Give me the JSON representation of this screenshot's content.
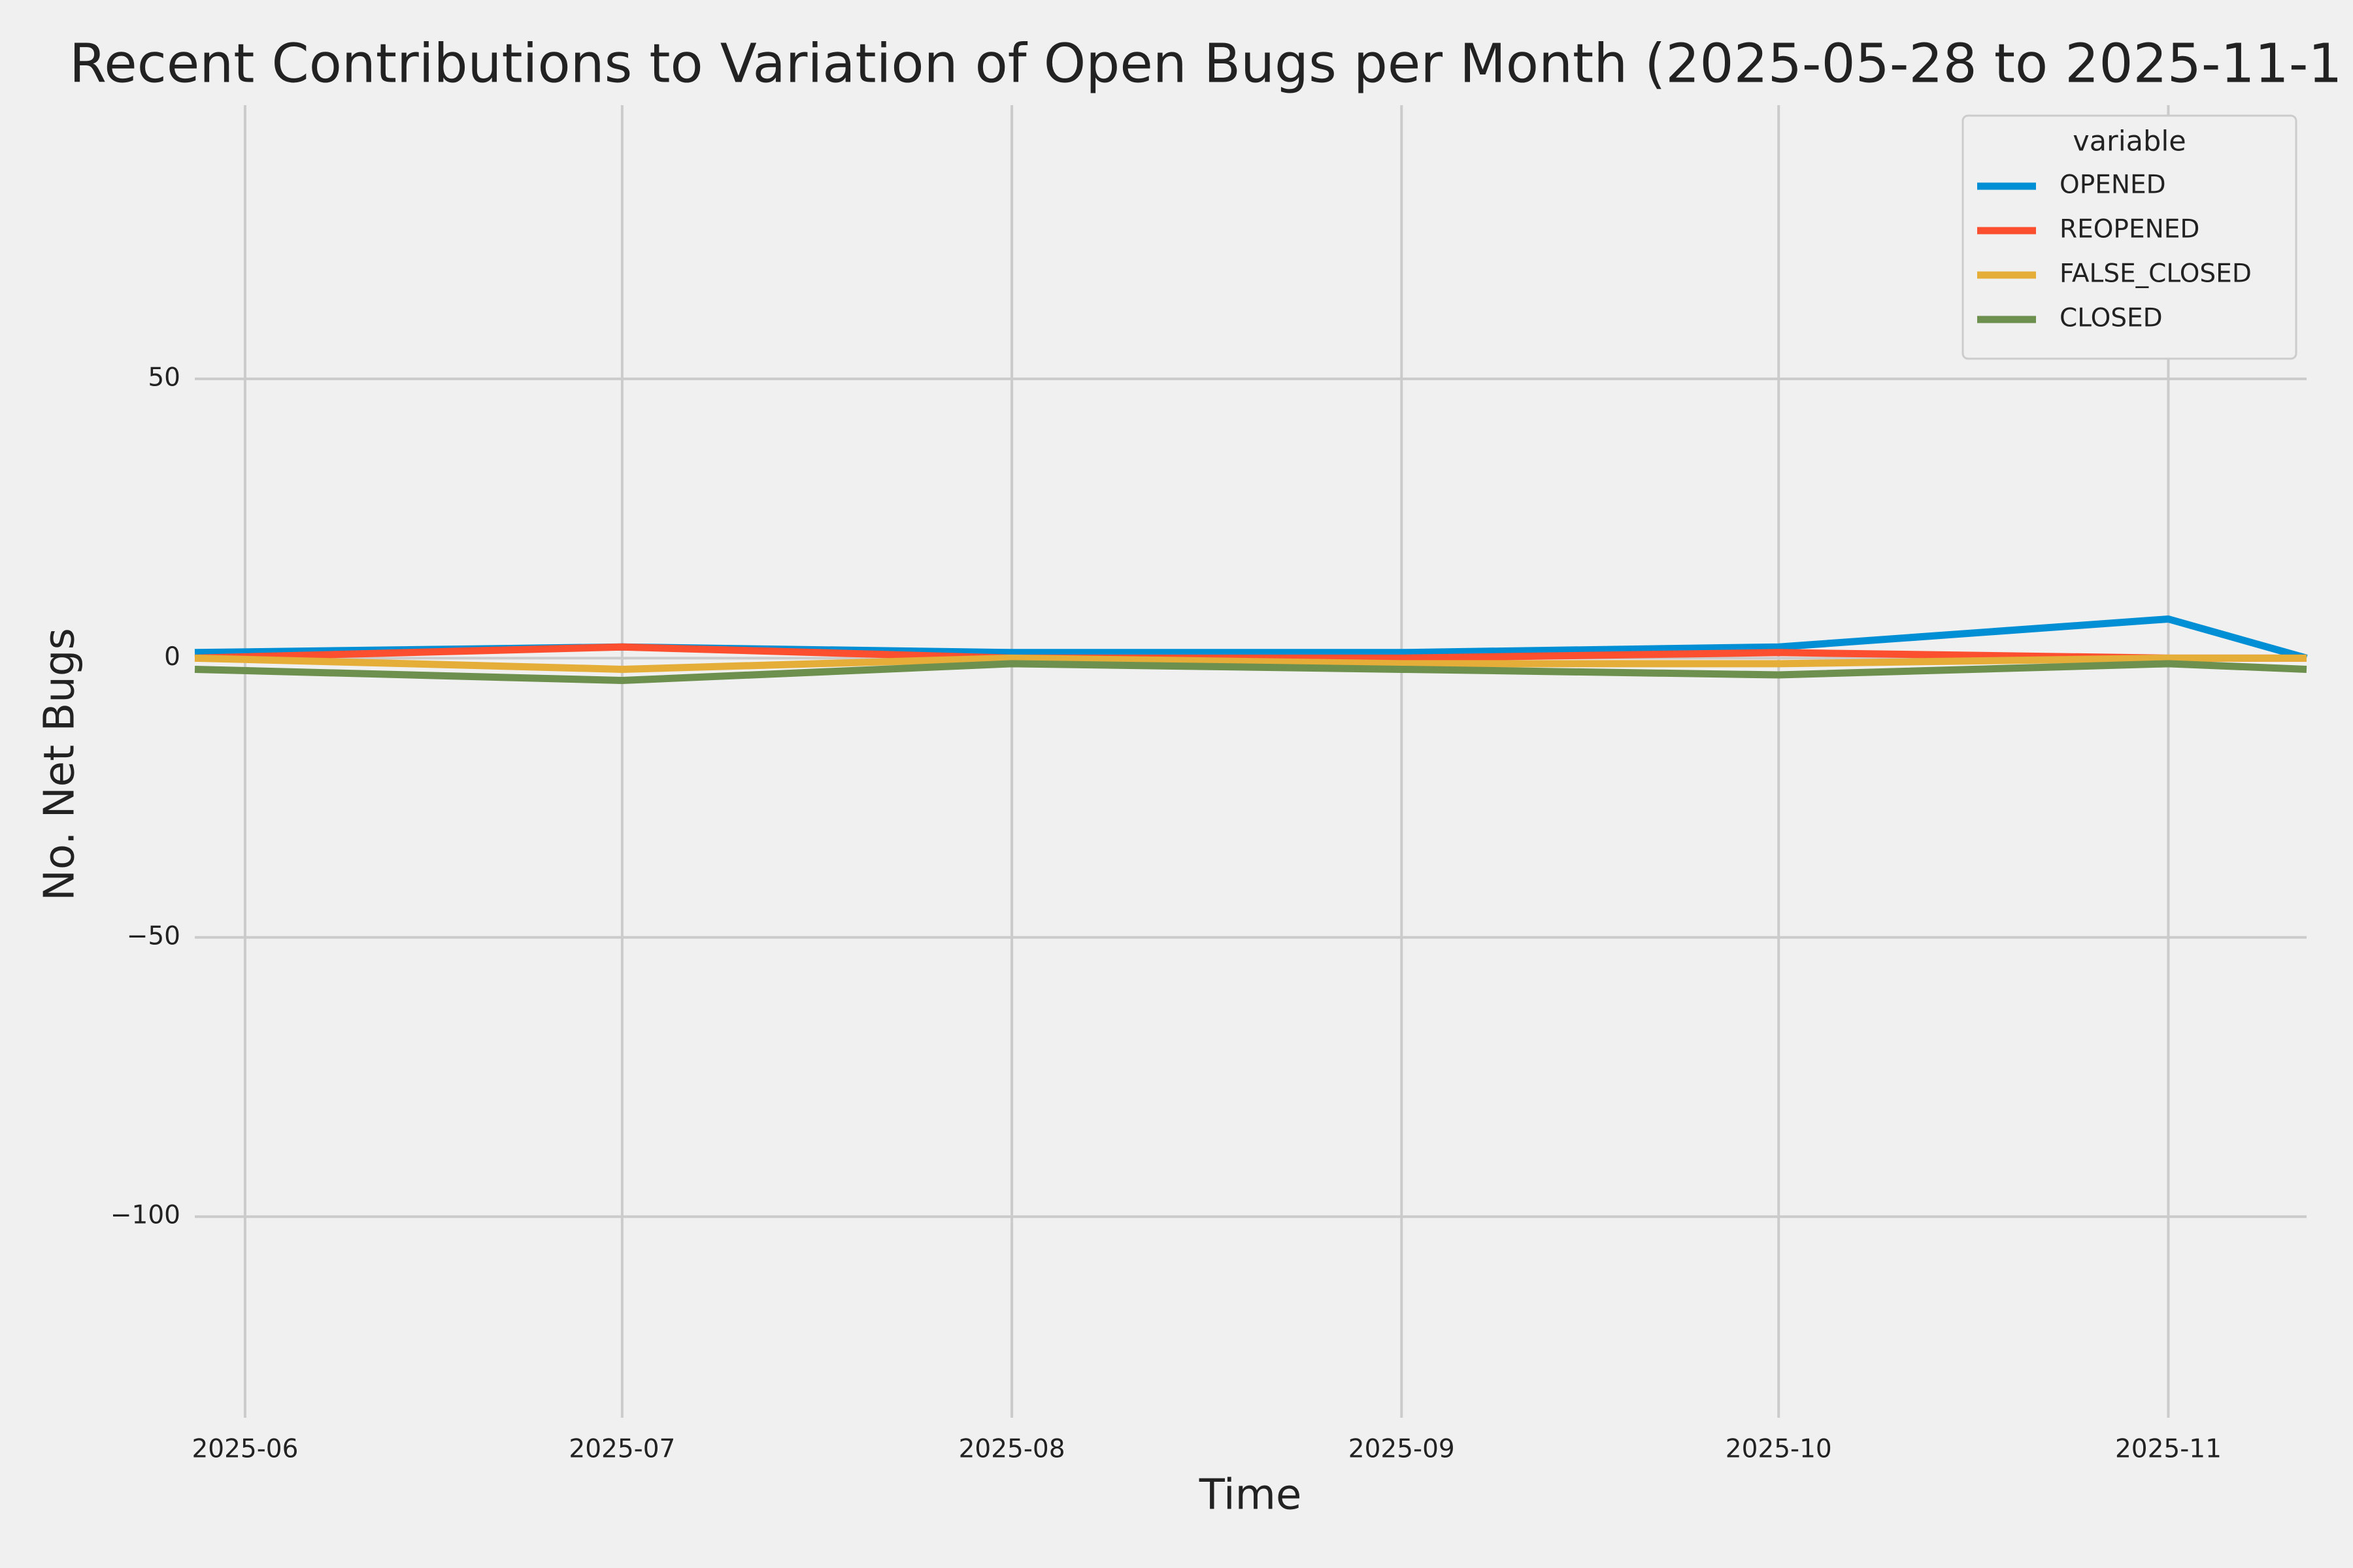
{
  "chart_data": {
    "type": "line",
    "title": "Recent Contributions to Variation of Open Bugs per Month (2025-05-28 to 2025-11-1",
    "x_label": "Time",
    "y_label": "No. Net Bugs",
    "legend_title": "variable",
    "legend_position": "upper right",
    "grid": true,
    "x": [
      "2025-05-28",
      "2025-07-01",
      "2025-08-01",
      "2025-09-01",
      "2025-10-01",
      "2025-11-01",
      "2025-11-12"
    ],
    "xlim": [
      "2025-05-28",
      "2025-11-12"
    ],
    "xticks": [
      "2025-06",
      "2025-07",
      "2025-08",
      "2025-09",
      "2025-10",
      "2025-11"
    ],
    "ylim": [
      -136,
      99
    ],
    "yticks": [
      {
        "value": -100,
        "label": "−100"
      },
      {
        "value": -50,
        "label": "−50"
      },
      0,
      50
    ],
    "series": [
      {
        "name": "OPENED",
        "color": "#008fd5",
        "values": [
          1,
          2,
          1,
          1,
          2,
          7,
          0
        ]
      },
      {
        "name": "REOPENED",
        "color": "#fc4f30",
        "values": [
          0,
          2,
          0,
          0,
          1,
          0,
          0
        ]
      },
      {
        "name": "FALSE_CLOSED",
        "color": "#e5ae38",
        "values": [
          0,
          -2,
          0,
          -1,
          -1,
          0,
          0
        ]
      },
      {
        "name": "CLOSED",
        "color": "#6d904f",
        "values": [
          -2,
          -4,
          -1,
          -2,
          -3,
          -1,
          -2
        ]
      }
    ]
  }
}
